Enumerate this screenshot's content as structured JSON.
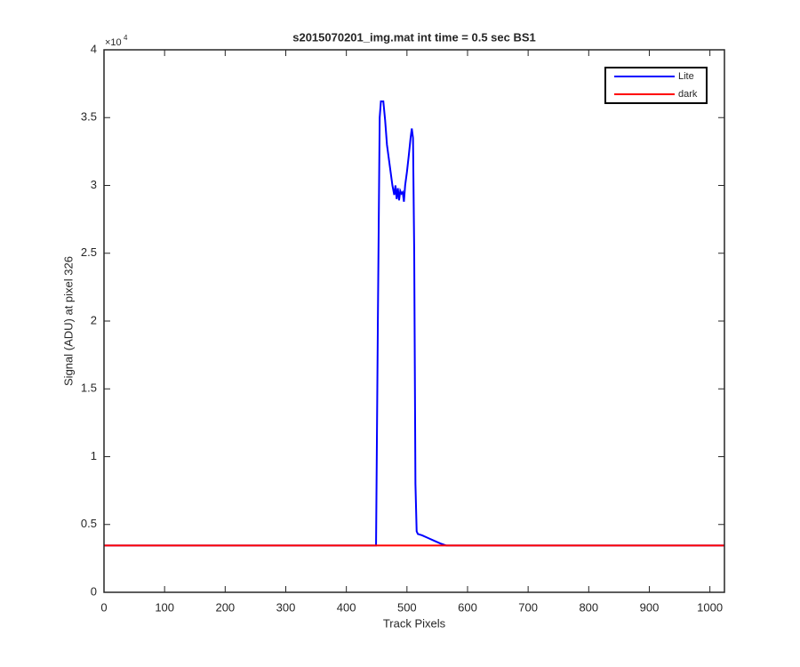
{
  "chart_data": {
    "type": "line",
    "title": "s2015070201_img.mat int time = 0.5 sec   BS1",
    "x_label": "Track Pixels",
    "y_label": "Signal (ADU) at pixel 326",
    "y_multiplier": "×10",
    "y_multiplier_exponent": "4",
    "xlim": [
      0,
      1024
    ],
    "ylim": [
      0,
      40000
    ],
    "xticks": [
      0,
      100,
      200,
      300,
      400,
      500,
      600,
      700,
      800,
      900,
      1000
    ],
    "yticks": [
      {
        "value": 0,
        "label": "0"
      },
      {
        "value": 5000,
        "label": "0.5"
      },
      {
        "value": 10000,
        "label": "1"
      },
      {
        "value": 15000,
        "label": "1.5"
      },
      {
        "value": 20000,
        "label": "2"
      },
      {
        "value": 25000,
        "label": "2.5"
      },
      {
        "value": 30000,
        "label": "3"
      },
      {
        "value": 35000,
        "label": "3.5"
      },
      {
        "value": 40000,
        "label": "4"
      }
    ],
    "grid": false,
    "legend": "northeast",
    "series": [
      {
        "name": "Lite",
        "color": "#0000ff",
        "x": [
          0,
          300,
          449,
          452,
          455,
          457,
          461,
          464,
          467,
          470,
          473,
          476,
          479,
          481,
          483,
          485,
          487,
          489,
          491,
          493,
          495,
          497,
          500,
          503,
          506,
          508,
          510,
          512,
          514,
          516,
          518,
          525,
          535,
          545,
          555,
          565,
          575,
          700,
          1024
        ],
        "values": [
          3450,
          3450,
          3450,
          20000,
          35000,
          36200,
          36200,
          34800,
          33000,
          32000,
          31000,
          30000,
          29300,
          30000,
          29000,
          29800,
          28900,
          29600,
          29400,
          29500,
          28800,
          30000,
          31000,
          32200,
          33500,
          34200,
          33500,
          25000,
          8000,
          4500,
          4300,
          4200,
          4000,
          3800,
          3600,
          3450,
          3450,
          3450,
          3450
        ]
      },
      {
        "name": "dark",
        "color": "#ff0000",
        "x": [
          0,
          1024
        ],
        "values": [
          3450,
          3450
        ]
      }
    ]
  }
}
